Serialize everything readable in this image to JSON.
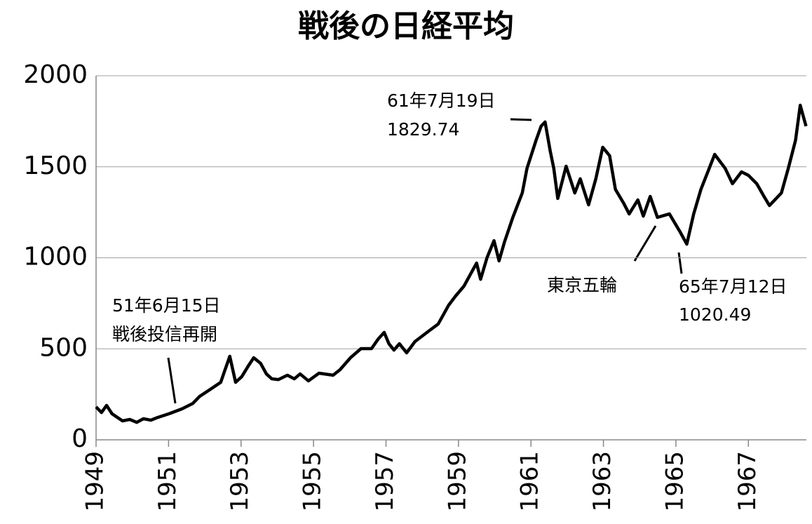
{
  "chart_data": {
    "type": "line",
    "title": "戦後の日経平均",
    "x": [
      1949.0,
      1949.15,
      1949.29,
      1949.44,
      1949.73,
      1949.93,
      1950.12,
      1950.31,
      1950.51,
      1950.7,
      1951.01,
      1951.37,
      1951.67,
      1951.86,
      1952.15,
      1952.44,
      1952.54,
      1952.69,
      1952.85,
      1953.02,
      1953.22,
      1953.35,
      1953.54,
      1953.7,
      1953.85,
      1954.03,
      1954.28,
      1954.47,
      1954.63,
      1954.86,
      1955.15,
      1955.54,
      1955.73,
      1956.02,
      1956.31,
      1956.6,
      1956.79,
      1956.95,
      1957.08,
      1957.22,
      1957.37,
      1957.57,
      1957.8,
      1958.15,
      1958.44,
      1958.73,
      1958.92,
      1959.15,
      1959.34,
      1959.5,
      1959.61,
      1959.79,
      1959.98,
      1960.12,
      1960.27,
      1960.5,
      1960.76,
      1960.89,
      1961.14,
      1961.28,
      1961.39,
      1961.53,
      1961.63,
      1961.74,
      1961.97,
      1962.21,
      1962.36,
      1962.59,
      1962.79,
      1962.98,
      1963.17,
      1963.33,
      1963.56,
      1963.71,
      1963.95,
      1964.1,
      1964.29,
      1964.49,
      1964.82,
      1965.11,
      1965.3,
      1965.49,
      1965.69,
      1965.88,
      1966.07,
      1966.36,
      1966.56,
      1966.81,
      1967.0,
      1967.23,
      1967.43,
      1967.58,
      1967.91,
      1968.1,
      1968.3,
      1968.43,
      1968.59
    ],
    "series": [
      {
        "color": "#000000",
        "values": [
          181,
          150,
          189,
          143,
          104,
          112,
          96,
          116,
          108,
          123,
          143,
          170,
          200,
          239,
          277,
          316,
          374,
          459,
          316,
          347,
          412,
          451,
          420,
          362,
          335,
          331,
          355,
          335,
          362,
          324,
          366,
          355,
          385,
          451,
          501,
          501,
          555,
          590,
          528,
          493,
          528,
          478,
          540,
          593,
          636,
          740,
          790,
          844,
          913,
          971,
          882,
          1002,
          1094,
          983,
          1087,
          1222,
          1356,
          1491,
          1645,
          1723,
          1746,
          1588,
          1491,
          1326,
          1503,
          1356,
          1434,
          1291,
          1434,
          1607,
          1561,
          1376,
          1299,
          1241,
          1318,
          1229,
          1337,
          1222,
          1241,
          1144,
          1075,
          1241,
          1376,
          1472,
          1568,
          1491,
          1407,
          1472,
          1453,
          1407,
          1337,
          1287,
          1356,
          1491,
          1645,
          1838,
          1723
        ]
      }
    ],
    "xlim": [
      1949,
      1968.6
    ],
    "xticks": [
      1949,
      1951,
      1953,
      1955,
      1957,
      1959,
      1961,
      1963,
      1965,
      1967
    ],
    "ylim": [
      0,
      2000
    ],
    "yticks": [
      0,
      500,
      1000,
      1500,
      2000
    ],
    "grid": true,
    "annotations": [
      {
        "lines": [
          "51年6月15日",
          "戦後投信再開"
        ]
      },
      {
        "lines": [
          "61年7月19日",
          "1829.74"
        ]
      },
      {
        "lines": [
          "東京五輪"
        ]
      },
      {
        "lines": [
          "65年7月12日",
          "1020.49"
        ]
      }
    ]
  }
}
